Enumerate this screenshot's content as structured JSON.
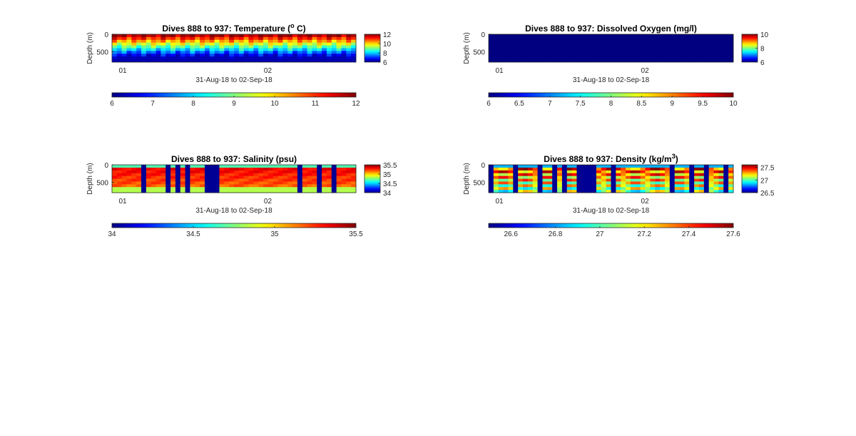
{
  "figure": {
    "background": "#ffffff",
    "colormap": "jet"
  },
  "chart_data": [
    {
      "type": "heatmap",
      "title_text": "Dives 888 to 937: Temperature (",
      "title_sup": "o",
      "title_tail": " C)",
      "ylabel": "Depth (m)",
      "xlabel": "31-Aug-18 to 02-Sep-18",
      "x_ticks": [
        "01",
        "02"
      ],
      "y_ticks": [
        "0",
        "500"
      ],
      "y_range": [
        0,
        800
      ],
      "colorbar_range": [
        6,
        12
      ],
      "colorbar_ticks": [
        "12",
        "10",
        "8",
        "6"
      ],
      "hcolorbar_range": [
        6,
        12
      ],
      "hcolorbar_ticks": [
        "6",
        "7",
        "8",
        "9",
        "10",
        "11",
        "12"
      ],
      "dives": 50,
      "pattern": "temperature"
    },
    {
      "type": "heatmap",
      "title_text": "Dives 888 to 937: Dissolved Oxygen (mg/l)",
      "title_sup": "",
      "title_tail": "",
      "ylabel": "Depth (m)",
      "xlabel": "31-Aug-18 to 02-Sep-18",
      "x_ticks": [
        "01",
        "02"
      ],
      "y_ticks": [
        "0",
        "500"
      ],
      "y_range": [
        0,
        800
      ],
      "colorbar_range": [
        6,
        10
      ],
      "colorbar_ticks": [
        "10",
        "8",
        "6"
      ],
      "hcolorbar_range": [
        6,
        10
      ],
      "hcolorbar_ticks": [
        "6",
        "6.5",
        "7",
        "7.5",
        "8",
        "8.5",
        "9",
        "9.5",
        "10"
      ],
      "dives": 50,
      "pattern": "uniform-min"
    },
    {
      "type": "heatmap",
      "title_text": "Dives 888 to 937: Salinity (psu)",
      "title_sup": "",
      "title_tail": "",
      "ylabel": "Depth (m)",
      "xlabel": "31-Aug-18 to 02-Sep-18",
      "x_ticks": [
        "01",
        "02"
      ],
      "y_ticks": [
        "0",
        "500"
      ],
      "y_range": [
        0,
        800
      ],
      "colorbar_range": [
        34,
        35.5
      ],
      "colorbar_ticks": [
        "35.5",
        "35",
        "34.5",
        "34"
      ],
      "hcolorbar_range": [
        34,
        35.5
      ],
      "hcolorbar_ticks": [
        "34",
        "34.5",
        "35",
        "35.5"
      ],
      "dives": 50,
      "pattern": "salinity"
    },
    {
      "type": "heatmap",
      "title_text": "Dives 888 to 937: Density (kg/m",
      "title_sup": "3",
      "title_tail": ")",
      "ylabel": "Depth (m)",
      "xlabel": "31-Aug-18 to 02-Sep-18",
      "x_ticks": [
        "01",
        "02"
      ],
      "y_ticks": [
        "0",
        "500"
      ],
      "y_range": [
        0,
        800
      ],
      "colorbar_range": [
        26.5,
        27.6
      ],
      "colorbar_ticks": [
        "27.5",
        "27",
        "26.5"
      ],
      "hcolorbar_range": [
        26.5,
        27.6
      ],
      "hcolorbar_ticks": [
        "26.6",
        "26.8",
        "27",
        "27.2",
        "27.4",
        "27.6"
      ],
      "dives": 50,
      "pattern": "density"
    }
  ]
}
